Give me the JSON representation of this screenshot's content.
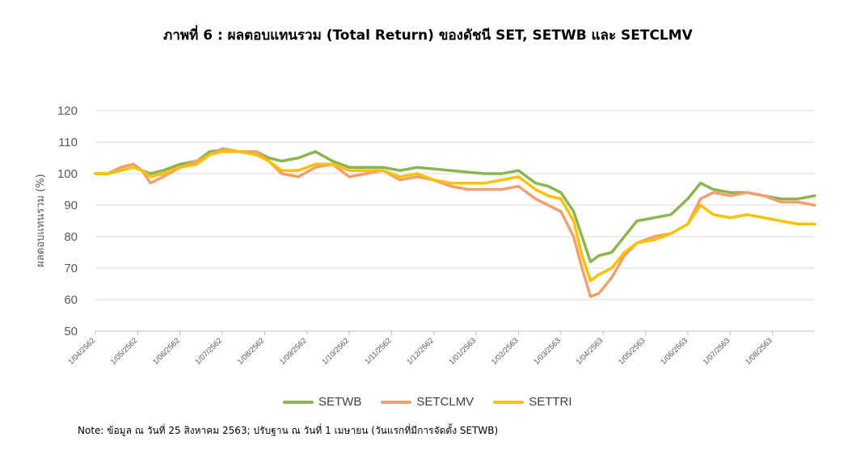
{
  "title": "ภาพที่ 6 : ผลตอบแทนรวม (Total Return) ของดัชนี SET, SETWB และ SETCLMV",
  "note": "Note: ข้อมูล ณ วันที่ 25 สิงหาคม 2563; ปรับฐาน ณ วันที่ 1 เมษายน (วันแรกที่มีการจัดตั้ง SETWB)",
  "chart_data": {
    "type": "line",
    "ylabel": "ผลตอบแทนรวม (%)",
    "ylim": [
      50,
      120
    ],
    "yticks": [
      50,
      60,
      70,
      80,
      90,
      100,
      110,
      120
    ],
    "grid": true,
    "legend_position": "bottom",
    "x_tick_labels": [
      "1/04/2562",
      "1/05/2562",
      "1/06/2562",
      "1/07/2562",
      "1/08/2562",
      "1/09/2562",
      "1/10/2562",
      "1/11/2562",
      "1/12/2562",
      "1/01/2563",
      "1/02/2563",
      "1/03/2563",
      "1/04/2563",
      "1/05/2563",
      "1/06/2563",
      "1/07/2563",
      "1/08/2563"
    ],
    "x_months": [
      0,
      17
    ],
    "series": [
      {
        "name": "SETWB",
        "color": "#8DB54F",
        "points": [
          [
            0,
            100
          ],
          [
            0.3,
            100
          ],
          [
            0.6,
            102
          ],
          [
            0.9,
            103
          ],
          [
            1.1,
            101
          ],
          [
            1.3,
            100
          ],
          [
            1.6,
            101
          ],
          [
            2.0,
            103
          ],
          [
            2.4,
            104
          ],
          [
            2.7,
            107
          ],
          [
            3.0,
            107.5
          ],
          [
            3.4,
            107
          ],
          [
            3.8,
            107
          ],
          [
            4.1,
            105
          ],
          [
            4.4,
            104
          ],
          [
            4.8,
            105
          ],
          [
            5.2,
            107
          ],
          [
            5.6,
            104
          ],
          [
            6.0,
            102
          ],
          [
            6.4,
            102
          ],
          [
            6.8,
            102
          ],
          [
            7.2,
            101
          ],
          [
            7.6,
            102
          ],
          [
            8.0,
            101.5
          ],
          [
            8.4,
            101
          ],
          [
            8.8,
            100.5
          ],
          [
            9.2,
            100
          ],
          [
            9.6,
            100
          ],
          [
            10.0,
            101
          ],
          [
            10.4,
            97
          ],
          [
            10.7,
            96
          ],
          [
            11.0,
            94
          ],
          [
            11.3,
            88
          ],
          [
            11.5,
            80
          ],
          [
            11.7,
            72
          ],
          [
            11.9,
            74
          ],
          [
            12.2,
            75
          ],
          [
            12.5,
            80
          ],
          [
            12.8,
            85
          ],
          [
            13.2,
            86
          ],
          [
            13.6,
            87
          ],
          [
            14.0,
            92
          ],
          [
            14.3,
            97
          ],
          [
            14.6,
            95
          ],
          [
            15.0,
            94
          ],
          [
            15.4,
            94
          ],
          [
            15.8,
            93
          ],
          [
            16.2,
            92
          ],
          [
            16.6,
            92
          ],
          [
            17.0,
            93
          ]
        ]
      },
      {
        "name": "SETCLMV",
        "color": "#F0A070",
        "points": [
          [
            0,
            100
          ],
          [
            0.3,
            100
          ],
          [
            0.6,
            102
          ],
          [
            0.9,
            103
          ],
          [
            1.1,
            101
          ],
          [
            1.3,
            97
          ],
          [
            1.6,
            99
          ],
          [
            2.0,
            102
          ],
          [
            2.4,
            104
          ],
          [
            2.7,
            106
          ],
          [
            3.0,
            108
          ],
          [
            3.4,
            107
          ],
          [
            3.8,
            107
          ],
          [
            4.1,
            104
          ],
          [
            4.4,
            100
          ],
          [
            4.8,
            99
          ],
          [
            5.2,
            102
          ],
          [
            5.6,
            103
          ],
          [
            6.0,
            99
          ],
          [
            6.4,
            100
          ],
          [
            6.8,
            101
          ],
          [
            7.2,
            98
          ],
          [
            7.6,
            99
          ],
          [
            8.0,
            98
          ],
          [
            8.4,
            96
          ],
          [
            8.8,
            95
          ],
          [
            9.2,
            95
          ],
          [
            9.6,
            95
          ],
          [
            10.0,
            96
          ],
          [
            10.4,
            92
          ],
          [
            10.7,
            90
          ],
          [
            11.0,
            88
          ],
          [
            11.3,
            80
          ],
          [
            11.5,
            70
          ],
          [
            11.7,
            61
          ],
          [
            11.9,
            62
          ],
          [
            12.2,
            67
          ],
          [
            12.5,
            74
          ],
          [
            12.8,
            78
          ],
          [
            13.2,
            80
          ],
          [
            13.6,
            81
          ],
          [
            14.0,
            84
          ],
          [
            14.3,
            92
          ],
          [
            14.6,
            94
          ],
          [
            15.0,
            93
          ],
          [
            15.4,
            94
          ],
          [
            15.8,
            93
          ],
          [
            16.2,
            91
          ],
          [
            16.6,
            91
          ],
          [
            17.0,
            90
          ]
        ]
      },
      {
        "name": "SETTRI",
        "color": "#FFC000",
        "points": [
          [
            0,
            100
          ],
          [
            0.3,
            100
          ],
          [
            0.6,
            101
          ],
          [
            0.9,
            102
          ],
          [
            1.1,
            101
          ],
          [
            1.3,
            99
          ],
          [
            1.6,
            100
          ],
          [
            2.0,
            102
          ],
          [
            2.4,
            103
          ],
          [
            2.7,
            106
          ],
          [
            3.0,
            107
          ],
          [
            3.4,
            107
          ],
          [
            3.8,
            106
          ],
          [
            4.1,
            104
          ],
          [
            4.4,
            101
          ],
          [
            4.8,
            101
          ],
          [
            5.2,
            103
          ],
          [
            5.6,
            103
          ],
          [
            6.0,
            101
          ],
          [
            6.4,
            101
          ],
          [
            6.8,
            101
          ],
          [
            7.2,
            99
          ],
          [
            7.6,
            100
          ],
          [
            8.0,
            98
          ],
          [
            8.4,
            97
          ],
          [
            8.8,
            97
          ],
          [
            9.2,
            97
          ],
          [
            9.6,
            98
          ],
          [
            10.0,
            99
          ],
          [
            10.4,
            95
          ],
          [
            10.7,
            93
          ],
          [
            11.0,
            92
          ],
          [
            11.3,
            85
          ],
          [
            11.5,
            74
          ],
          [
            11.7,
            66
          ],
          [
            11.9,
            68
          ],
          [
            12.2,
            70
          ],
          [
            12.5,
            75
          ],
          [
            12.8,
            78
          ],
          [
            13.2,
            79
          ],
          [
            13.6,
            81
          ],
          [
            14.0,
            84
          ],
          [
            14.3,
            90
          ],
          [
            14.6,
            87
          ],
          [
            15.0,
            86
          ],
          [
            15.4,
            87
          ],
          [
            15.8,
            86
          ],
          [
            16.2,
            85
          ],
          [
            16.6,
            84
          ],
          [
            17.0,
            84
          ]
        ]
      }
    ]
  }
}
